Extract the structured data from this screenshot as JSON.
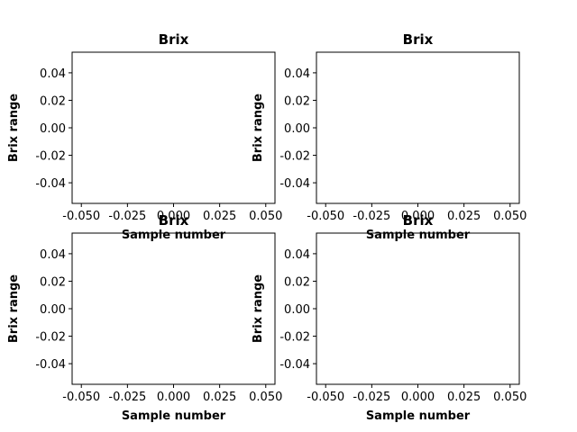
{
  "figure": {
    "colors": {
      "background": "#ffffff",
      "axes": "#000000"
    }
  },
  "chart_data": [
    {
      "type": "line",
      "title": "Brix",
      "xlabel": "Sample number",
      "ylabel": "Brix range",
      "xlim": [
        -0.055,
        0.055
      ],
      "ylim": [
        -0.055,
        0.055
      ],
      "xticks": [
        "-0.050",
        "-0.025",
        "0.000",
        "0.025",
        "0.050"
      ],
      "yticks": [
        "0.04",
        "0.02",
        "0.00",
        "-0.02",
        "-0.04"
      ],
      "series": [],
      "grid": false
    },
    {
      "type": "line",
      "title": "Brix",
      "xlabel": "Sample number",
      "ylabel": "Brix range",
      "xlim": [
        -0.055,
        0.055
      ],
      "ylim": [
        -0.055,
        0.055
      ],
      "xticks": [
        "-0.050",
        "-0.025",
        "0.000",
        "0.025",
        "0.050"
      ],
      "yticks": [
        "0.04",
        "0.02",
        "0.00",
        "-0.02",
        "-0.04"
      ],
      "series": [],
      "grid": false
    },
    {
      "type": "line",
      "title": "Brix",
      "xlabel": "Sample number",
      "ylabel": "Brix range",
      "xlim": [
        -0.055,
        0.055
      ],
      "ylim": [
        -0.055,
        0.055
      ],
      "xticks": [
        "-0.050",
        "-0.025",
        "0.000",
        "0.025",
        "0.050"
      ],
      "yticks": [
        "0.04",
        "0.02",
        "0.00",
        "-0.02",
        "-0.04"
      ],
      "series": [],
      "grid": false
    },
    {
      "type": "line",
      "title": "Brix",
      "xlabel": "Sample number",
      "ylabel": "Brix range",
      "xlim": [
        -0.055,
        0.055
      ],
      "ylim": [
        -0.055,
        0.055
      ],
      "xticks": [
        "-0.050",
        "-0.025",
        "0.000",
        "0.025",
        "0.050"
      ],
      "yticks": [
        "0.04",
        "0.02",
        "0.00",
        "-0.02",
        "-0.04"
      ],
      "series": [],
      "grid": false
    }
  ]
}
